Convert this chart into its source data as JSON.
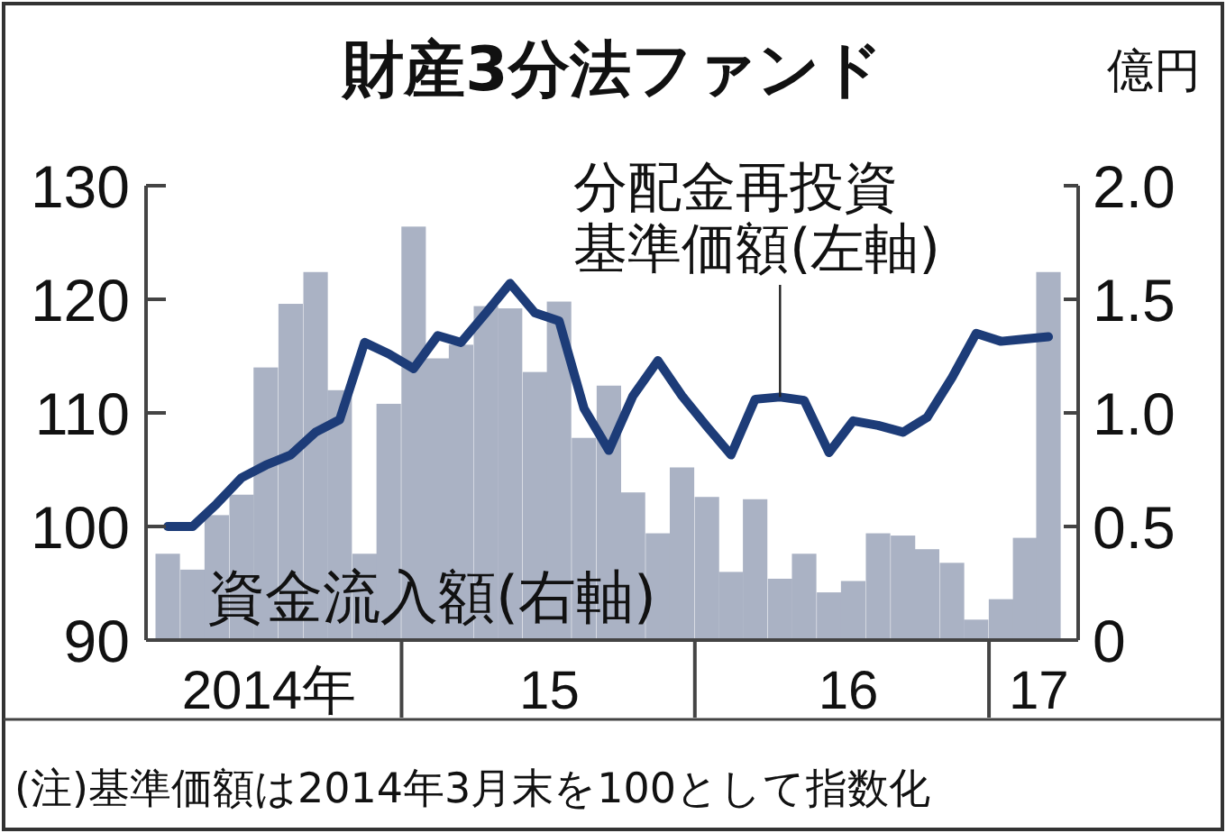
{
  "chart_data": {
    "type": "bar",
    "title": "財産3分法ファンド",
    "y2label": "億円",
    "x": [
      "2014-03-16",
      "2014-04-16",
      "2014-05-16",
      "2014-06-16",
      "2014-07-16",
      "2014-08-16",
      "2014-09-16",
      "2014-10-16",
      "2014-11-16",
      "2014-12-16",
      "2015-01-16",
      "2015-02-15",
      "2015-03-16",
      "2015-04-16",
      "2015-05-16",
      "2015-06-16",
      "2015-07-16",
      "2015-08-16",
      "2015-09-16",
      "2015-10-16",
      "2015-11-16",
      "2015-12-16",
      "2016-01-16",
      "2016-02-15",
      "2016-03-16",
      "2016-04-16",
      "2016-05-16",
      "2016-06-16",
      "2016-07-16",
      "2016-08-16",
      "2016-09-16",
      "2016-10-16",
      "2016-11-16",
      "2016-12-16",
      "2017-01-16",
      "2017-02-15",
      "2017-03-16"
    ],
    "series": [
      {
        "axis": "y2",
        "name": "資金流入額(右軸)",
        "color": "#aab2c4",
        "values": [
          0.38,
          0.31,
          0.55,
          0.64,
          1.2,
          1.48,
          1.62,
          1.1,
          0.38,
          1.04,
          1.82,
          1.24,
          1.3,
          1.47,
          1.46,
          1.18,
          1.49,
          0.89,
          1.12,
          0.65,
          0.47,
          0.76,
          0.63,
          0.3,
          0.62,
          0.27,
          0.38,
          0.21,
          0.26,
          0.47,
          0.46,
          0.4,
          0.34,
          0.09,
          0.18,
          0.45,
          1.62
        ]
      },
      {
        "type": "line",
        "color": "#1d3c78",
        "values": [
          100,
          100,
          102,
          104.3,
          105.4,
          106.3,
          108.3,
          109.4,
          116.2,
          115.2,
          113.9,
          116.8,
          116.2,
          118.8,
          121.4,
          118.8,
          118.1,
          110.4,
          106.7,
          111.5,
          114.6,
          111.5,
          108.8,
          106.3,
          111.2,
          111.4,
          111.1,
          106.5,
          109.3,
          108.9,
          108.3,
          109.6,
          113.1,
          117,
          116.3,
          116.5,
          116.7
        ]
      }
    ],
    "xlim": [
      "2014-02-17",
      "2017-04-22"
    ],
    "xticks": [
      {
        "value": "2014-07-20",
        "label": "2014年"
      },
      {
        "value": "2015-01-01",
        "label": null
      },
      {
        "value": "2015-07-04",
        "label": "15"
      },
      {
        "value": "2016-01-01",
        "label": null
      },
      {
        "value": "2016-07-10",
        "label": "16"
      },
      {
        "value": "2017-01-01",
        "label": null
      },
      {
        "value": "2017-03-04",
        "label": "17"
      }
    ],
    "ylim": [
      90,
      130
    ],
    "yticks": [
      90,
      100,
      110,
      120,
      130
    ],
    "y2lim": [
      0,
      2
    ],
    "y2ticks": [
      0,
      0.5,
      {
        "value": 1,
        "label": "1.0"
      },
      1.5,
      {
        "value": 2,
        "label": "2.0"
      }
    ],
    "annotations": [
      {
        "text": "分配金再投資基準価額(左軸)",
        "x": "2016-04-16",
        "y": 111.4
      },
      "(注)基準価額は2014年3月末を100として指数化"
    ]
  }
}
